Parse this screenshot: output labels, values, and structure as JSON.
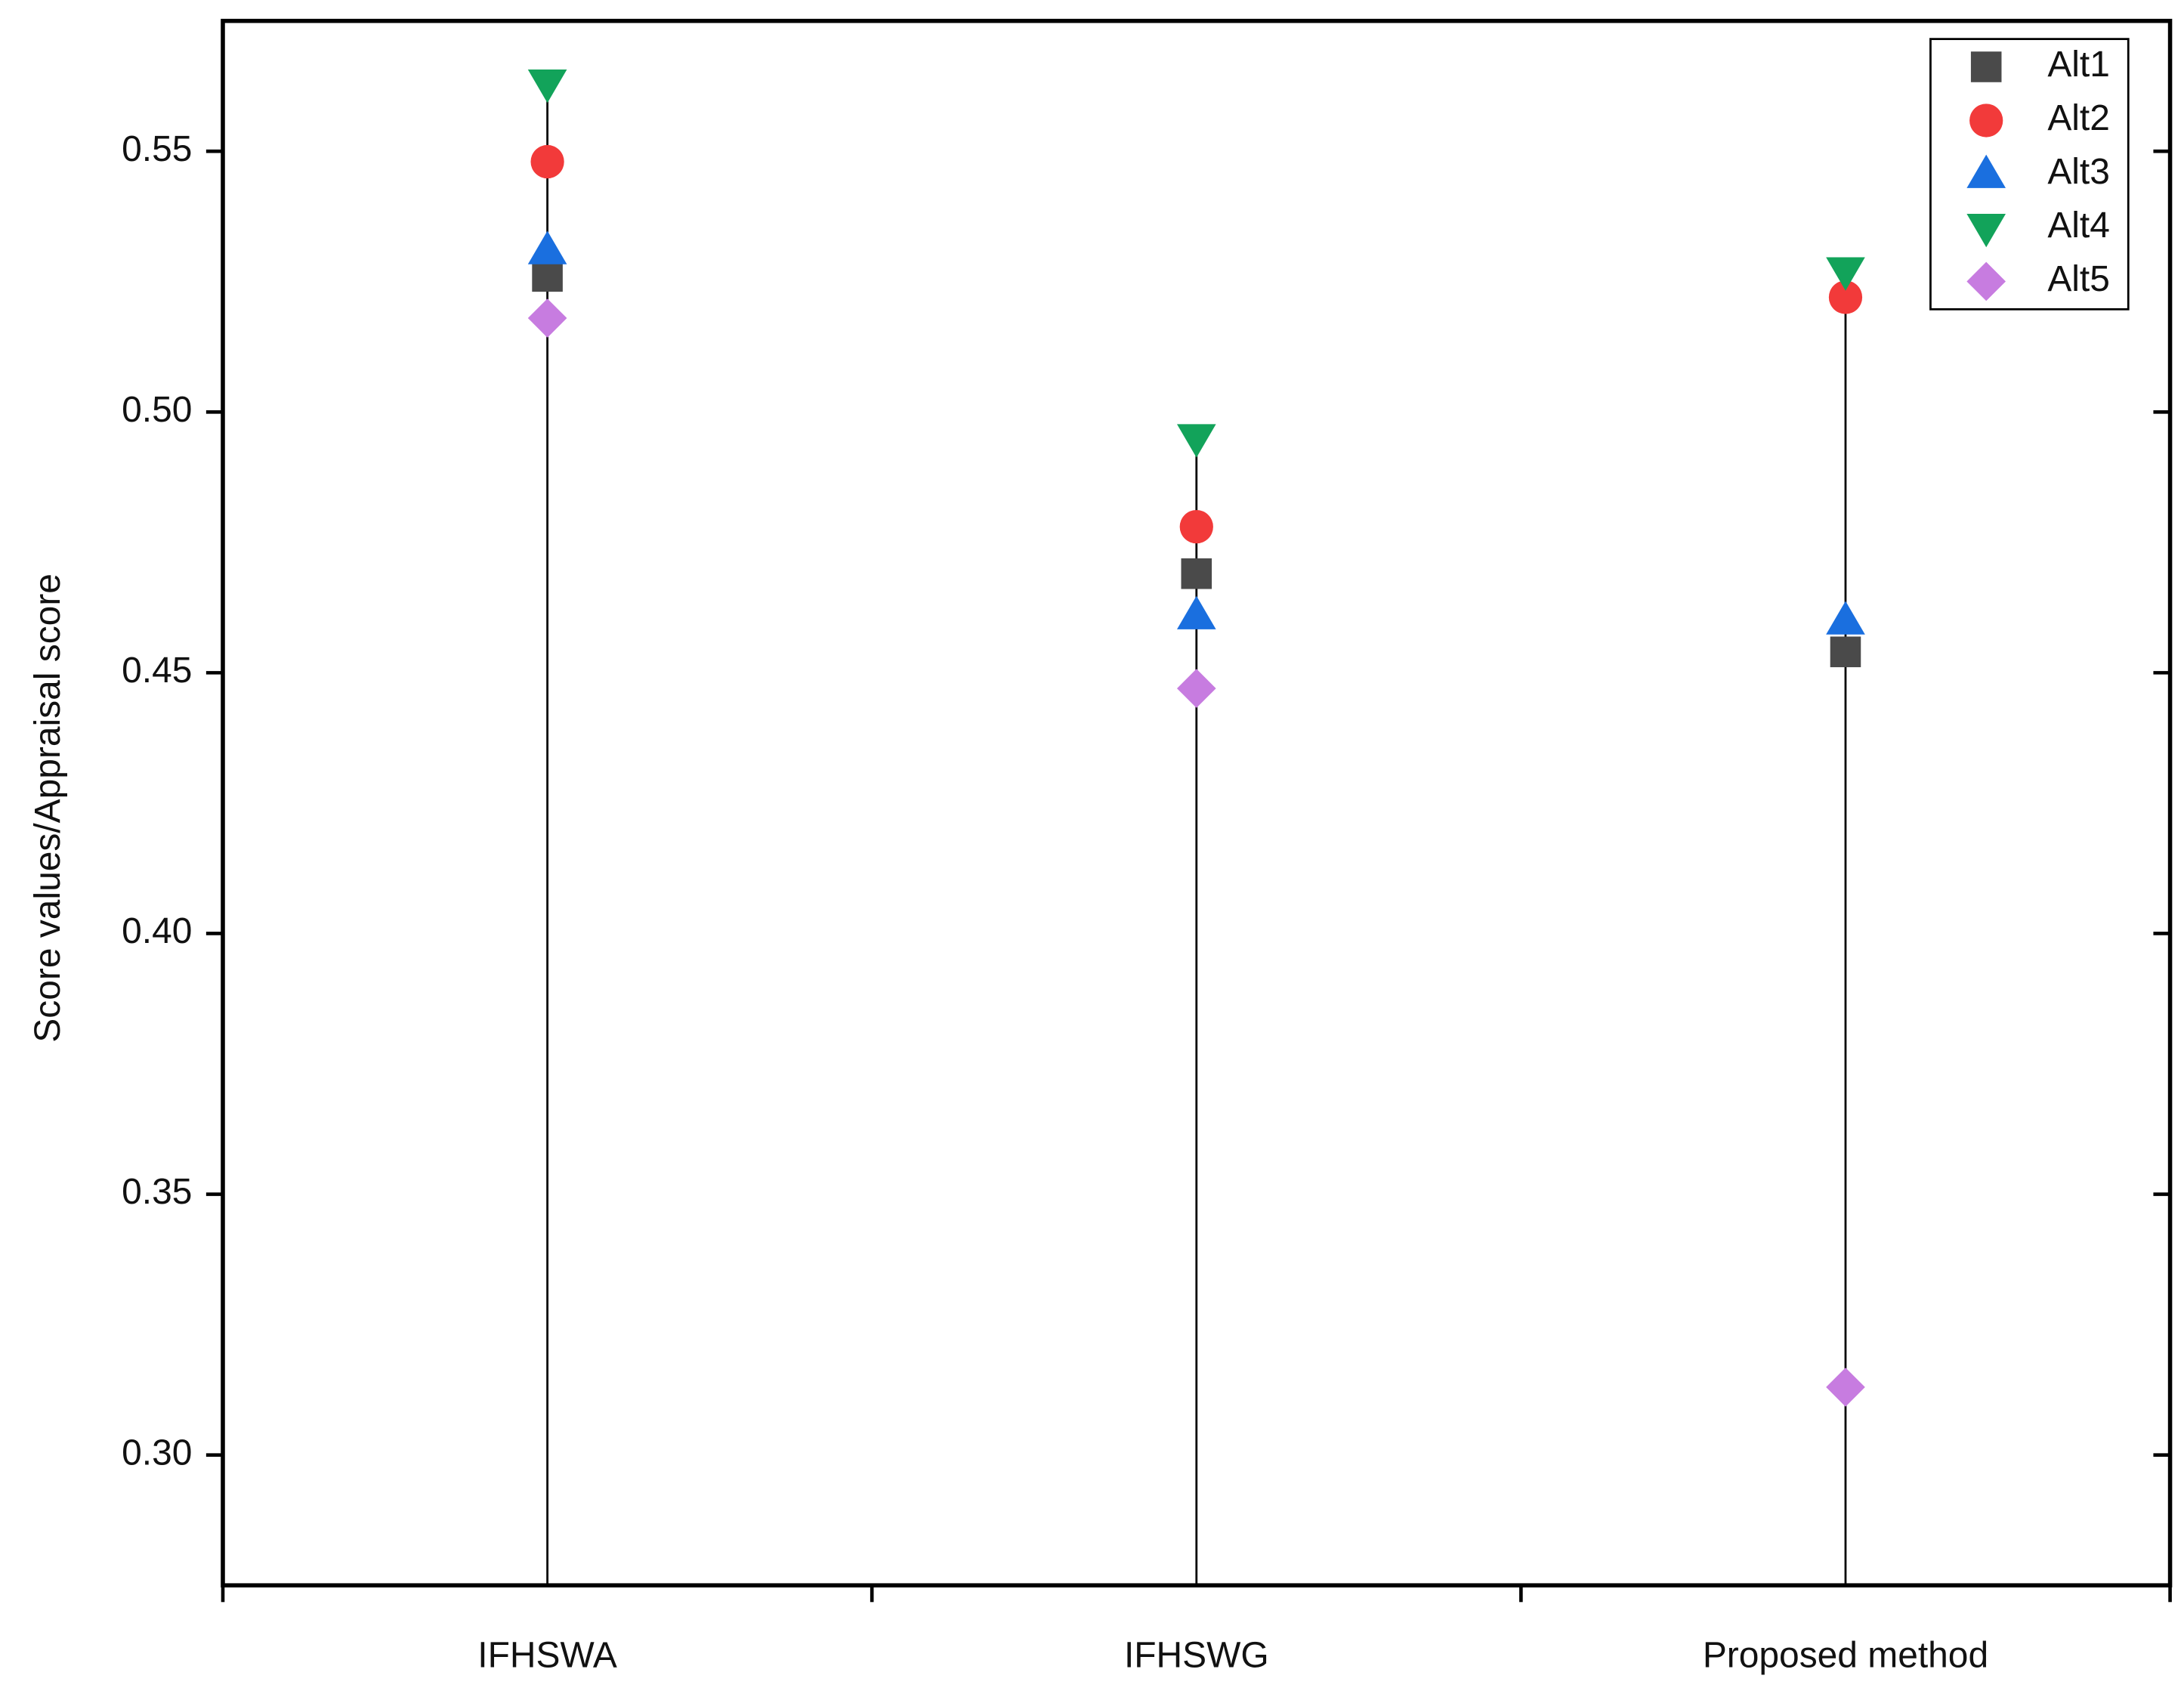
{
  "chart_data": {
    "type": "dot",
    "y_label": "Score values/Appraisal score",
    "categories": [
      "IFHSWA",
      "IFHSWG",
      "Proposed method"
    ],
    "series": [
      {
        "name": "Alt1",
        "color": "#4a4a4a",
        "marker": "square",
        "values": [
          0.526,
          0.469,
          0.454
        ]
      },
      {
        "name": "Alt2",
        "color": "#f23a3a",
        "marker": "circle",
        "values": [
          0.548,
          0.478,
          0.522
        ]
      },
      {
        "name": "Alt3",
        "color": "#1a6fdf",
        "marker": "triangle-up",
        "values": [
          0.531,
          0.461,
          0.46
        ]
      },
      {
        "name": "Alt4",
        "color": "#12a35a",
        "marker": "triangle-down",
        "values": [
          0.563,
          0.495,
          0.527
        ]
      },
      {
        "name": "Alt5",
        "color": "#c77ce0",
        "marker": "diamond",
        "values": [
          0.518,
          0.447,
          0.313
        ]
      }
    ],
    "ylim": [
      0.275,
      0.575
    ],
    "yticks": [
      {
        "value": 0.3,
        "label": "0.30"
      },
      0.35,
      {
        "value": 0.4,
        "label": "0.40"
      },
      0.45,
      {
        "value": 0.5,
        "label": "0.50"
      },
      0.55
    ],
    "drop_lines": true,
    "legend": "upper right"
  }
}
